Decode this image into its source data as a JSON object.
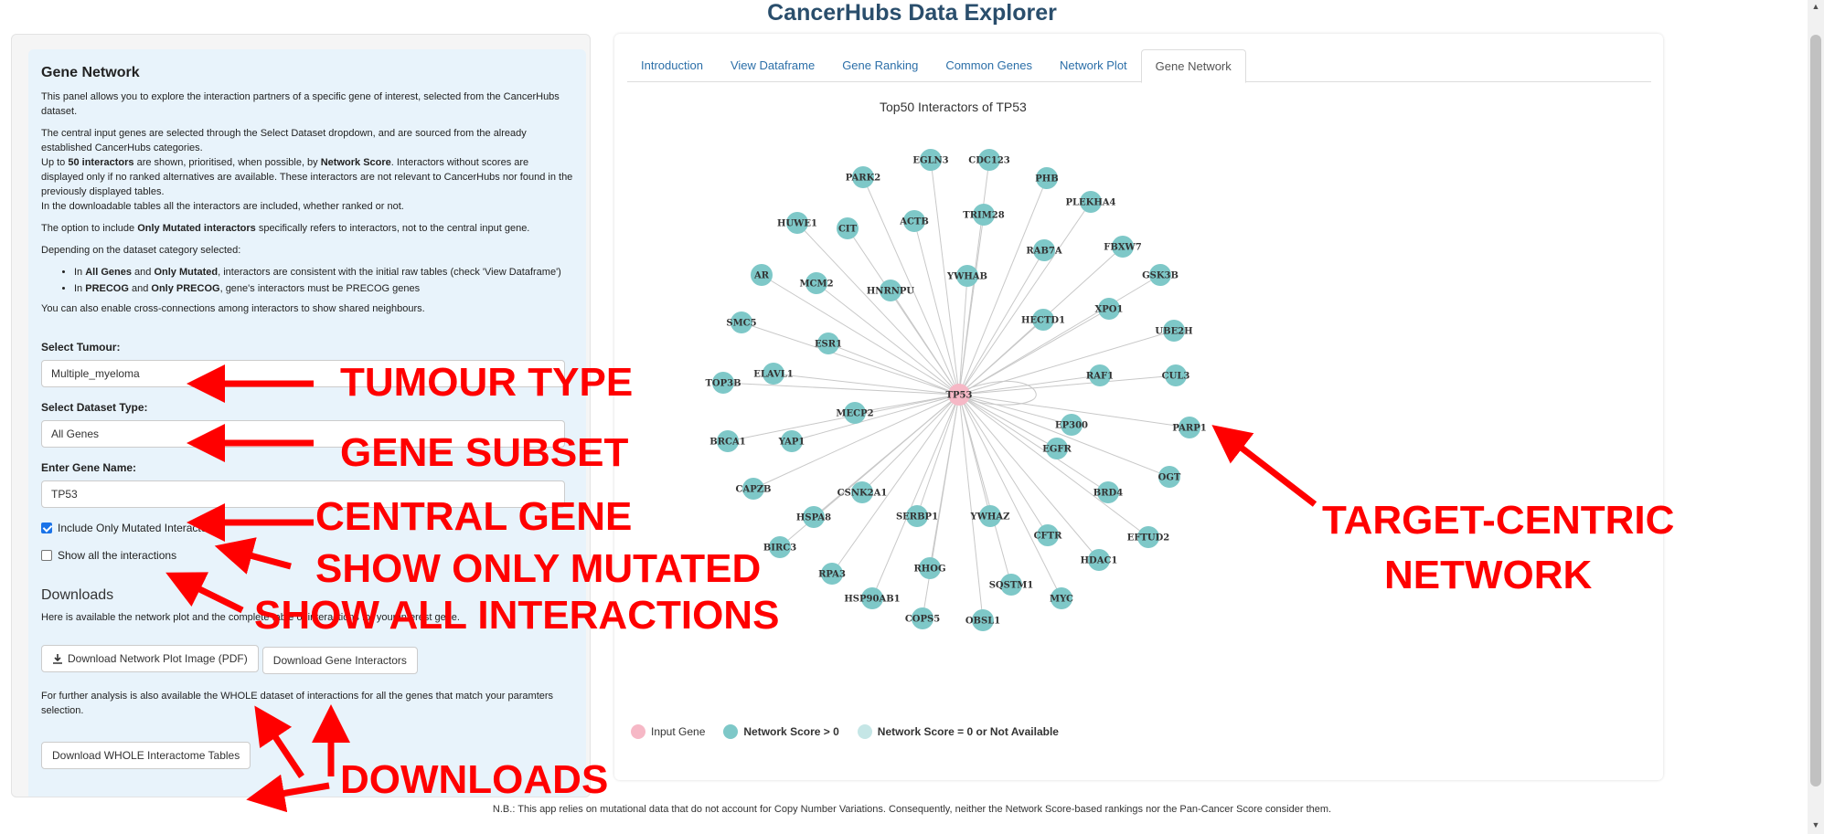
{
  "app": {
    "title": "CancerHubs Data Explorer"
  },
  "sidebar": {
    "heading": "Gene Network",
    "p1": "This panel allows you to explore the interaction partners of a specific gene of interest, selected from the CancerHubs dataset.",
    "p2a": "The central input genes are selected through the Select Dataset dropdown, and are sourced from the already established CancerHubs categories.",
    "p2b_pre": "Up to ",
    "p2b_bold1": "50 interactors",
    "p2b_mid": " are shown, prioritised, when possible, by ",
    "p2b_bold2": "Network Score",
    "p2b_post": ". Interactors without scores are displayed only if no ranked alternatives are available. These interactors are not relevant to CancerHubs nor found in the previously displayed tables.",
    "p2c": "In the downloadable tables all the interactors are included, whether ranked or not.",
    "p3_pre": "The option to include ",
    "p3_bold": "Only Mutated interactors",
    "p3_post": " specifically refers to interactors, not to the central input gene.",
    "p4": "Depending on the dataset category selected:",
    "bullet1_pre": "In ",
    "bullet1_b1": "All Genes",
    "bullet1_mid": " and ",
    "bullet1_b2": "Only Mutated",
    "bullet1_post": ", interactors are consistent with the initial raw tables (check 'View Dataframe')",
    "bullet2_pre": "In ",
    "bullet2_b1": "PRECOG",
    "bullet2_mid": " and ",
    "bullet2_b2": "Only PRECOG",
    "bullet2_post": ", gene's interactors must be PRECOG genes",
    "p5": "You can also enable cross-connections among interactors to show shared neighbours.",
    "tumour_label": "Select Tumour:",
    "tumour_value": "Multiple_myeloma",
    "dataset_label": "Select Dataset Type:",
    "dataset_value": "All Genes",
    "gene_label": "Enter Gene Name:",
    "gene_value": "TP53",
    "check_mutated_label": "Include Only Mutated Interactors",
    "check_mutated_checked": true,
    "check_all_label": "Show all the interactions",
    "check_all_checked": false,
    "downloads_heading": "Downloads",
    "downloads_desc": "Here is available the network plot and the complete table of interactions for your interest gene.",
    "btn_plot": "Download Network Plot Image (PDF)",
    "btn_interactors": "Download Gene Interactors",
    "further_desc": "For further analysis is also available the WHOLE dataset of interactions for all the genes that match your paramters selection.",
    "btn_whole": "Download WHOLE Interactome Tables"
  },
  "tabs": [
    {
      "label": "Introduction",
      "active": false
    },
    {
      "label": "View Dataframe",
      "active": false
    },
    {
      "label": "Gene Ranking",
      "active": false
    },
    {
      "label": "Common Genes",
      "active": false
    },
    {
      "label": "Network Plot",
      "active": false
    },
    {
      "label": "Gene Network",
      "active": true
    }
  ],
  "network": {
    "title": "Top50 Interactors of TP53",
    "center": "TP53",
    "colors": {
      "input": "#f6b8c6",
      "scored": "#7ec8c8",
      "unscored": "#c5e6e6",
      "edge": "#c8c8c8"
    },
    "nodes": [
      "EGLN3",
      "CDC123",
      "PARK2",
      "PHB",
      "PLEKHA4",
      "HUWE1",
      "ACTB",
      "TRIM28",
      "CIT",
      "FBXW7",
      "RAB7A",
      "GSK3B",
      "AR",
      "MCM2",
      "YWHAB",
      "HNRNPU",
      "XPO1",
      "HECTD1",
      "SMC5",
      "UBE2H",
      "ESR1",
      "ELAVL1",
      "RAF1",
      "CUL3",
      "TOP3B",
      "MECP2",
      "EP300",
      "PARP1",
      "BRCA1",
      "YAP1",
      "EGFR",
      "OGT",
      "CAPZB",
      "CSNK2A1",
      "BRD4",
      "SERBP1",
      "YWHAZ",
      "HSPA8",
      "EFTUD2",
      "CFTR",
      "BIRC3",
      "HDAC1",
      "RHOG",
      "RPA3",
      "SQSTM1",
      "HSP90AB1",
      "MYC",
      "COPS5",
      "OBSL1"
    ],
    "legend": {
      "input": "Input Gene",
      "scored": "Network Score > 0",
      "unscored": "Network Score = 0 or Not Available"
    }
  },
  "annotations": {
    "tumour": "TUMOUR TYPE",
    "subset": "GENE SUBSET",
    "central": "CENTRAL GENE",
    "mutated": "SHOW ONLY MUTATED",
    "all": "SHOW ALL INTERACTIONS",
    "downloads": "DOWNLOADS",
    "target1": "TARGET-CENTRIC",
    "target2": "NETWORK",
    "color": "#ff0000"
  },
  "footer": {
    "note": "N.B.: This app relies on mutational data that do not account for Copy Number Variations. Consequently, neither the Network Score-based rankings nor the Pan-Cancer Score consider them."
  }
}
